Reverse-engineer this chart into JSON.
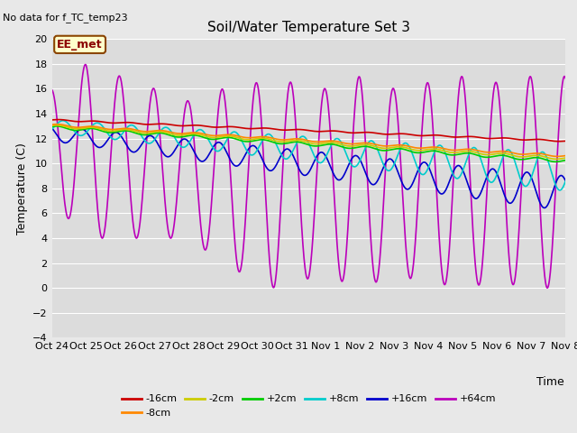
{
  "title": "Soil/Water Temperature Set 3",
  "no_data_text": "No data for f_TC_temp23",
  "ylabel": "Temperature (C)",
  "xlabel": "Time",
  "annotation": "EE_met",
  "ylim": [
    -4,
    20
  ],
  "bg_color": "#e8e8e8",
  "plot_bg_color": "#dcdcdc",
  "x_tick_labels": [
    "Oct 24",
    "Oct 25",
    "Oct 26",
    "Oct 27",
    "Oct 28",
    "Oct 29",
    "Oct 30",
    "Oct 31",
    "Nov 1",
    "Nov 2",
    "Nov 3",
    "Nov 4",
    "Nov 5",
    "Nov 6",
    "Nov 7",
    "Nov 8"
  ],
  "series": {
    "-16cm": {
      "color": "#cc0000"
    },
    "-8cm": {
      "color": "#ff8800"
    },
    "-2cm": {
      "color": "#cccc00"
    },
    "+2cm": {
      "color": "#00cc00"
    },
    "+8cm": {
      "color": "#00cccc"
    },
    "+16cm": {
      "color": "#0000cc"
    },
    "+64cm": {
      "color": "#bb00bb"
    }
  },
  "linewidth": 1.2
}
